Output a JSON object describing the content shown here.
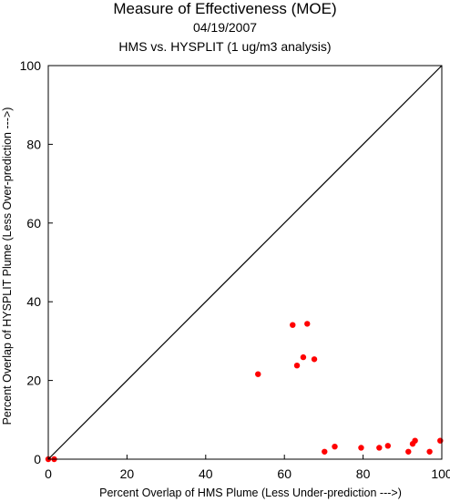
{
  "chart_data": {
    "type": "scatter",
    "title": "Measure of Effectiveness (MOE)",
    "date": "04/19/2007",
    "subtitle": "HMS vs. HYSPLIT  (1 ug/m3 analysis)",
    "xlabel": "Percent Overlap of HMS Plume (Less Under-prediction --->)",
    "ylabel": "Percent Overlap of HYSPLIT Plume (Less Over-prediction --->)",
    "xlim": [
      0,
      100
    ],
    "ylim": [
      0,
      100
    ],
    "xticks": [
      "0",
      "20",
      "40",
      "60",
      "80",
      "100"
    ],
    "yticks": [
      "0",
      "20",
      "40",
      "60",
      "80",
      "100"
    ],
    "xtick_values": [
      0,
      20,
      40,
      60,
      80,
      100
    ],
    "ytick_values": [
      0,
      20,
      40,
      60,
      80,
      100
    ],
    "grid": false,
    "reference_line": "y = x diagonal",
    "point_color": "#ff0000",
    "points": [
      {
        "x": 0.0,
        "y": 0.0
      },
      {
        "x": 1.5,
        "y": 0.0
      },
      {
        "x": 53.3,
        "y": 21.6
      },
      {
        "x": 62.1,
        "y": 34.1
      },
      {
        "x": 63.2,
        "y": 23.8
      },
      {
        "x": 64.8,
        "y": 25.9
      },
      {
        "x": 65.8,
        "y": 34.4
      },
      {
        "x": 67.6,
        "y": 25.4
      },
      {
        "x": 70.2,
        "y": 1.9
      },
      {
        "x": 72.8,
        "y": 3.2
      },
      {
        "x": 79.5,
        "y": 2.9
      },
      {
        "x": 84.1,
        "y": 2.9
      },
      {
        "x": 86.3,
        "y": 3.4
      },
      {
        "x": 91.5,
        "y": 1.9
      },
      {
        "x": 92.6,
        "y": 3.9
      },
      {
        "x": 93.2,
        "y": 4.7
      },
      {
        "x": 96.9,
        "y": 1.9
      },
      {
        "x": 99.6,
        "y": 4.7
      }
    ]
  }
}
